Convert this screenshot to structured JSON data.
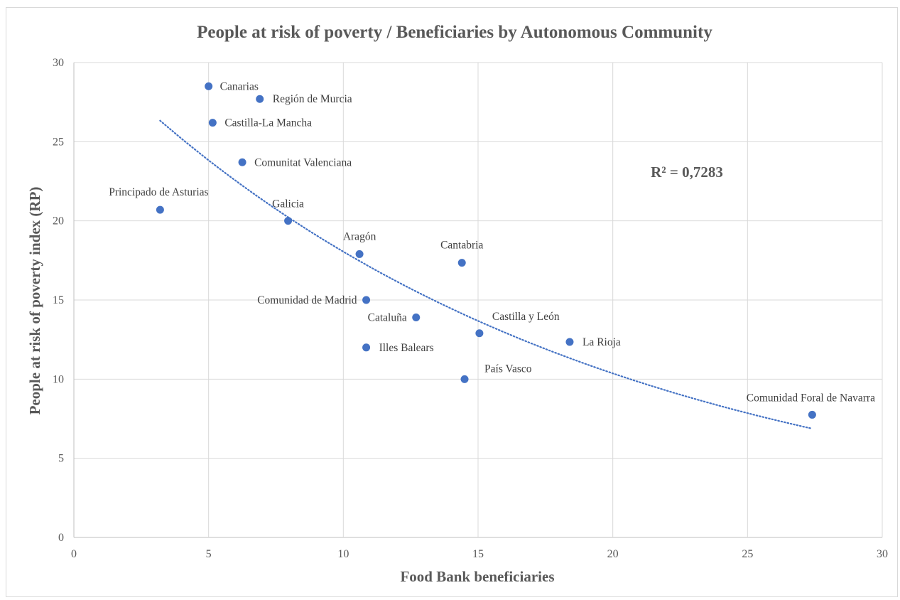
{
  "chart_data": {
    "type": "scatter",
    "title": "People at risk of poverty / Beneficiaries by Autonomous Community",
    "xlabel": "Food Bank beneficiaries",
    "ylabel": "People at risk of poverty index (RP)",
    "xlim": [
      0,
      30
    ],
    "ylim": [
      0,
      30
    ],
    "xticks": [
      0,
      5,
      10,
      15,
      20,
      25,
      30
    ],
    "yticks": [
      0,
      5,
      10,
      15,
      20,
      25,
      30
    ],
    "grid": true,
    "legend": "none",
    "marker_color": "#4472c4",
    "points": [
      {
        "label": "Canarias",
        "x": 5.0,
        "y": 28.5
      },
      {
        "label": "Región de Murcia",
        "x": 6.9,
        "y": 27.7
      },
      {
        "label": "Castilla-La Mancha",
        "x": 5.15,
        "y": 26.2
      },
      {
        "label": "Comunitat Valenciana",
        "x": 6.25,
        "y": 23.7
      },
      {
        "label": "Principado de Asturias",
        "x": 3.2,
        "y": 20.7
      },
      {
        "label": "Galicia",
        "x": 7.95,
        "y": 20.0
      },
      {
        "label": "Aragón",
        "x": 10.6,
        "y": 17.9
      },
      {
        "label": "Cantabria",
        "x": 14.4,
        "y": 17.35
      },
      {
        "label": "Comunidad de Madrid",
        "x": 10.85,
        "y": 15.0
      },
      {
        "label": "Cataluña",
        "x": 12.7,
        "y": 13.9
      },
      {
        "label": "Castilla y León",
        "x": 15.05,
        "y": 12.9
      },
      {
        "label": "La Rioja",
        "x": 18.4,
        "y": 12.35
      },
      {
        "label": "Illes Balears",
        "x": 10.85,
        "y": 12.0
      },
      {
        "label": "País Vasco",
        "x": 14.5,
        "y": 10.0
      },
      {
        "label": "Comunidad Foral de Navarra",
        "x": 27.4,
        "y": 7.75
      }
    ],
    "trendline": {
      "type": "exponential",
      "x_range": [
        3.2,
        27.4
      ],
      "a": 31.45,
      "b": -0.0555,
      "color": "#4472c4",
      "style": "dotted",
      "r_squared_label": "R² = 0,7283"
    }
  }
}
